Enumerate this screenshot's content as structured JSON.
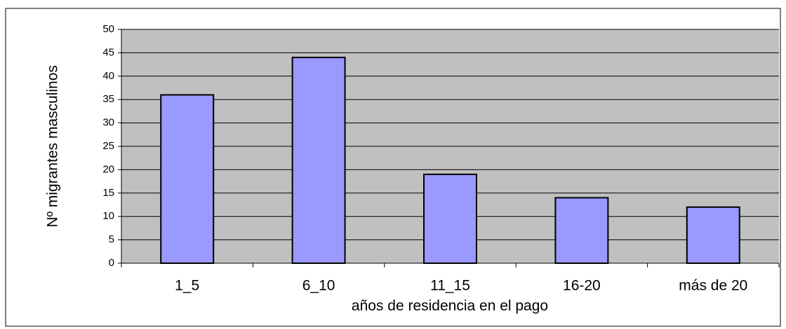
{
  "chart_data": {
    "type": "bar",
    "xlabel": "años de residencia en el pago",
    "ylabel": "Nº migrantes masculinos",
    "categories": [
      "1_5",
      "6_10",
      "11_15",
      "16-20",
      "más de 20"
    ],
    "values": [
      36,
      44,
      19,
      14,
      12
    ],
    "color": "#9999ff",
    "ylim": [
      0,
      50
    ],
    "yticks": [
      0,
      5,
      10,
      15,
      20,
      25,
      30,
      35,
      40,
      45,
      50
    ],
    "grid": true
  }
}
